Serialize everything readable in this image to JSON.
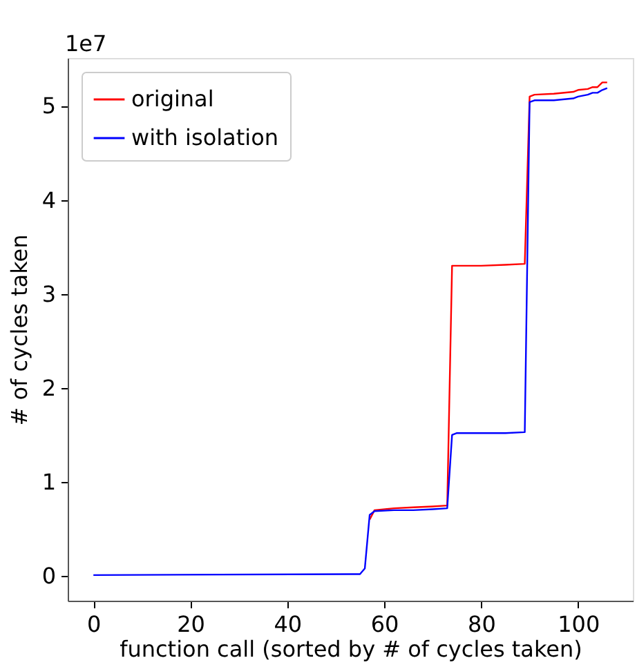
{
  "chart_data": {
    "type": "line",
    "xlabel": "function call (sorted by # of cycles taken)",
    "ylabel": "# of cycles taken",
    "annotations": [
      "1e7"
    ],
    "series": [
      {
        "name": "original",
        "color": "#ff0000",
        "x": [
          57,
          58,
          62,
          66,
          70,
          73,
          74,
          75,
          80,
          85,
          89,
          90,
          91,
          95,
          99,
          100,
          102,
          103,
          104,
          105,
          106
        ],
        "values": [
          0.6,
          0.7,
          0.72,
          0.73,
          0.74,
          0.75,
          3.3,
          3.3,
          3.3,
          3.31,
          3.32,
          5.1,
          5.12,
          5.13,
          5.15,
          5.17,
          5.18,
          5.2,
          5.2,
          5.25,
          5.25
        ]
      },
      {
        "name": "with isolation",
        "color": "#0000ff",
        "x": [
          0,
          55,
          56,
          57,
          58,
          62,
          66,
          70,
          73,
          74,
          75,
          80,
          85,
          89,
          90,
          91,
          95,
          99,
          100,
          102,
          103,
          104,
          105,
          106
        ],
        "values": [
          0.01,
          0.02,
          0.08,
          0.65,
          0.69,
          0.7,
          0.7,
          0.71,
          0.72,
          1.5,
          1.52,
          1.52,
          1.52,
          1.53,
          5.04,
          5.06,
          5.06,
          5.08,
          5.1,
          5.12,
          5.14,
          5.14,
          5.17,
          5.19
        ]
      }
    ],
    "xlim": [
      -5.3,
      111.3
    ],
    "xticks": [
      0,
      20,
      40,
      60,
      80,
      100
    ],
    "ylim": [
      -0.263,
      5.51
    ],
    "yticks": [
      0,
      1,
      2,
      3,
      4,
      5
    ],
    "grid": false,
    "legend": "top left",
    "marker": "none",
    "line_style": "solid"
  }
}
